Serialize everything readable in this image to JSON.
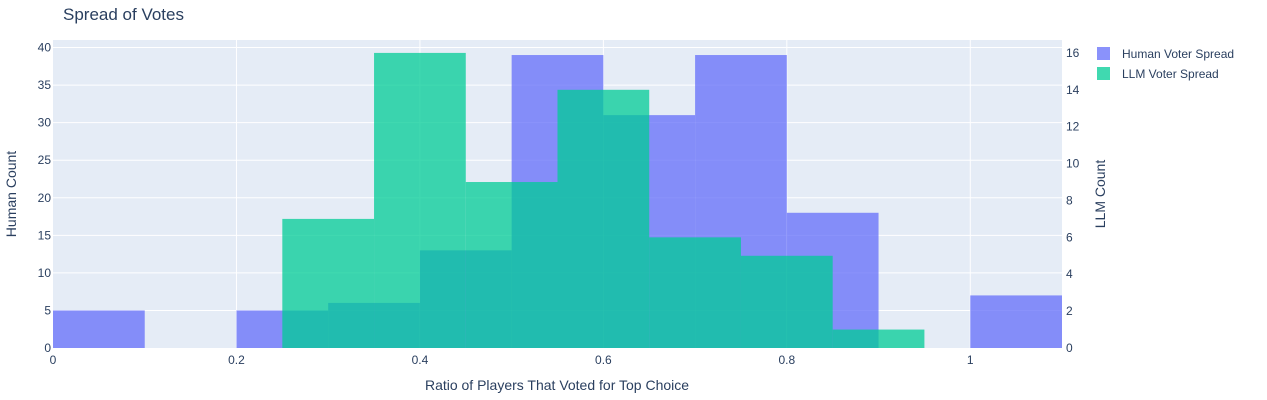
{
  "chart_data": {
    "type": "bar",
    "title": "Spread of Votes",
    "xlabel": "Ratio of Players That Voted for Top Choice",
    "ylabel_left": "Human Count",
    "ylabel_right": "LLM Count",
    "xlim": [
      0,
      1.1
    ],
    "ylim_left": [
      0,
      41
    ],
    "ylim_right": [
      0,
      16.7
    ],
    "x_ticks": [
      0,
      0.2,
      0.4,
      0.6,
      0.8,
      1
    ],
    "x_tick_labels": [
      "0",
      "0.2",
      "0.4",
      "0.6",
      "0.8",
      "1"
    ],
    "y_left_ticks": [
      0,
      5,
      10,
      15,
      20,
      25,
      30,
      35,
      40
    ],
    "y_left_tick_labels": [
      "0",
      "5",
      "10",
      "15",
      "20",
      "25",
      "30",
      "35",
      "40"
    ],
    "y_right_ticks": [
      0,
      2,
      4,
      6,
      8,
      10,
      12,
      14,
      16
    ],
    "y_right_tick_labels": [
      "0",
      "2",
      "4",
      "6",
      "8",
      "10",
      "12",
      "14",
      "16"
    ],
    "grid": true,
    "legend_position": "top-right",
    "series": [
      {
        "name": "Human Voter Spread",
        "axis": "left",
        "color": "#636efa",
        "bins": [
          {
            "x0": 0.0,
            "x1": 0.1,
            "value": 5
          },
          {
            "x0": 0.2,
            "x1": 0.3,
            "value": 5
          },
          {
            "x0": 0.3,
            "x1": 0.4,
            "value": 6
          },
          {
            "x0": 0.4,
            "x1": 0.5,
            "value": 13
          },
          {
            "x0": 0.5,
            "x1": 0.6,
            "value": 39
          },
          {
            "x0": 0.6,
            "x1": 0.7,
            "value": 31
          },
          {
            "x0": 0.7,
            "x1": 0.8,
            "value": 39
          },
          {
            "x0": 0.8,
            "x1": 0.9,
            "value": 18
          },
          {
            "x0": 1.0,
            "x1": 1.1,
            "value": 7
          }
        ]
      },
      {
        "name": "LLM Voter Spread",
        "axis": "right",
        "color": "#00cc96",
        "bins": [
          {
            "x0": 0.25,
            "x1": 0.35,
            "value": 7
          },
          {
            "x0": 0.35,
            "x1": 0.45,
            "value": 16
          },
          {
            "x0": 0.45,
            "x1": 0.55,
            "value": 9
          },
          {
            "x0": 0.55,
            "x1": 0.65,
            "value": 14
          },
          {
            "x0": 0.65,
            "x1": 0.75,
            "value": 6
          },
          {
            "x0": 0.75,
            "x1": 0.85,
            "value": 5
          },
          {
            "x0": 0.85,
            "x1": 0.95,
            "value": 1
          }
        ]
      }
    ]
  }
}
